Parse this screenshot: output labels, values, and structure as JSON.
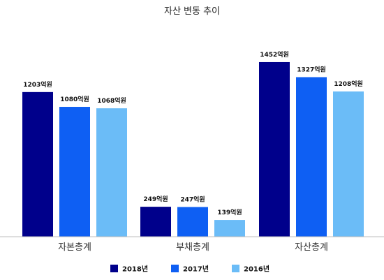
{
  "chart_data": {
    "type": "bar",
    "title": "자산 변동 추이",
    "categories": [
      "자본총계",
      "부채총계",
      "자산총계"
    ],
    "series": [
      {
        "name": "2018년",
        "values": [
          1203,
          249,
          1452
        ],
        "labels": [
          "1203억원",
          "249억원",
          "1452억원"
        ],
        "color": "#00008b"
      },
      {
        "name": "2017년",
        "values": [
          1080,
          247,
          1327
        ],
        "labels": [
          "1080억원",
          "247억원",
          "1327억원"
        ],
        "color": "#0e5ff3"
      },
      {
        "name": "2016년",
        "values": [
          1068,
          139,
          1208
        ],
        "labels": [
          "1068억원",
          "139억원",
          "1208억원"
        ],
        "color": "#6bbcf7"
      }
    ],
    "unit": "억원",
    "ylim": [
      0,
      1626
    ],
    "grid": false,
    "legend_position": "bottom"
  }
}
